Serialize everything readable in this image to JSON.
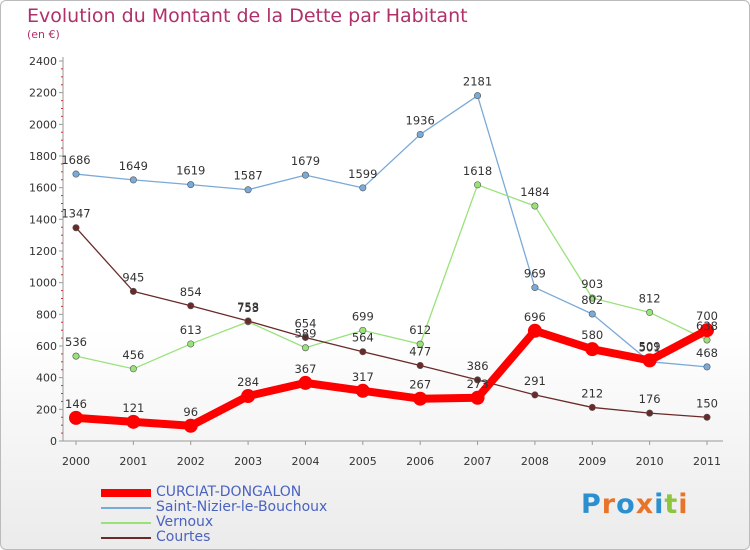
{
  "title": "Evolution du Montant de la Dette par Habitant",
  "subtitle": "(en €)",
  "logo": "Proxiti",
  "chart_data": {
    "type": "line",
    "x": [
      "2000",
      "2001",
      "2002",
      "2003",
      "2004",
      "2005",
      "2006",
      "2007",
      "2008",
      "2009",
      "2010",
      "2011"
    ],
    "ylim": [
      0,
      2400
    ],
    "yticks": [
      0,
      200,
      400,
      600,
      800,
      1000,
      1200,
      1400,
      1600,
      1800,
      2000,
      2200,
      2400
    ],
    "grid": false,
    "legend": "bottom-left",
    "series": [
      {
        "name": "CURCIAT-DONGALON",
        "color": "#ff0000",
        "values": [
          146,
          121,
          96,
          284,
          367,
          317,
          267,
          273,
          696,
          580,
          509,
          700
        ]
      },
      {
        "name": "Saint-Nizier-le-Bouchoux",
        "color": "#7aaad8",
        "values": [
          1686,
          1649,
          1619,
          1587,
          1679,
          1599,
          1936,
          2181,
          969,
          802,
          501,
          468
        ]
      },
      {
        "name": "Vernoux",
        "color": "#99e27a",
        "values": [
          536,
          456,
          613,
          753,
          589,
          699,
          612,
          1618,
          1484,
          903,
          812,
          638
        ]
      },
      {
        "name": "Courtes",
        "color": "#6b2a2a",
        "values": [
          1347,
          945,
          854,
          758,
          654,
          564,
          477,
          386,
          291,
          212,
          176,
          150
        ]
      }
    ]
  }
}
